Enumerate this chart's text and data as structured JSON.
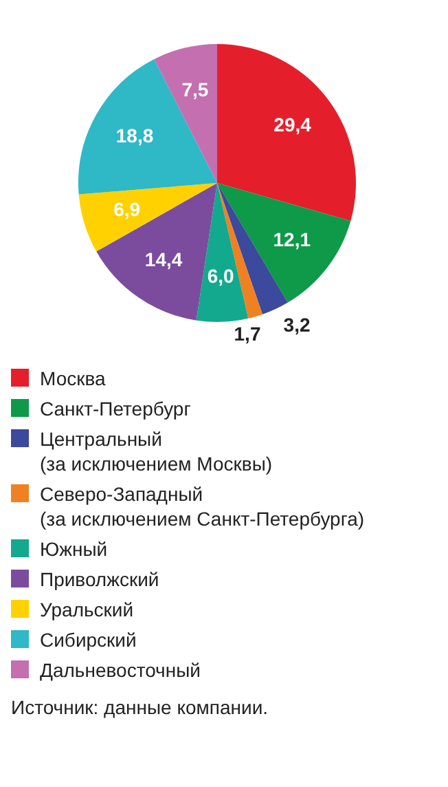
{
  "chart_data": {
    "type": "pie",
    "categories": [
      "Москва",
      "Санкт-Петербург",
      "Центральный\n(за исключением Москвы)",
      "Северо-Западный\n(за исключением Санкт-Петербурга)",
      "Южный",
      "Приволжский",
      "Уральский",
      "Сибирский",
      "Дальневосточный"
    ],
    "values": [
      29.4,
      12.1,
      3.2,
      1.7,
      6.0,
      14.4,
      6.9,
      18.8,
      7.5
    ],
    "value_labels": [
      "29,4",
      "12,1",
      "3,2",
      "1,7",
      "6,0",
      "14,4",
      "6,9",
      "18,8",
      "7,5"
    ],
    "colors": [
      "#e41f2b",
      "#0e9a49",
      "#3b4a9c",
      "#f08122",
      "#13a98e",
      "#7b4c9e",
      "#ffd100",
      "#2fb8c6",
      "#c46fb0"
    ],
    "legend": "bottom",
    "annotations": [
      "Источник: данные компании."
    ]
  }
}
